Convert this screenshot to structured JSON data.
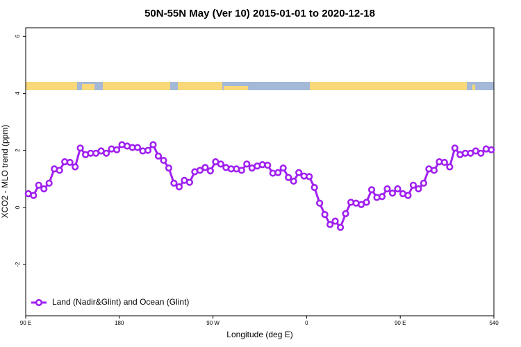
{
  "chart_data": {
    "type": "line",
    "title": "50N-55N May (Ver 10)   2015-01-01 to 2020-12-18",
    "xlabel": "Longitude (deg E)",
    "ylabel": "XCO2 - MLO trend (ppm)",
    "xlim": [
      90,
      540
    ],
    "ylim": [
      -3.8,
      6.3
    ],
    "xticks": [
      {
        "value": 90,
        "label": "90 E"
      },
      180,
      {
        "value": 270,
        "label": "90 W"
      },
      {
        "value": 360,
        "label": "0"
      },
      {
        "value": 450,
        "label": "90 E"
      },
      540
    ],
    "yticks": [
      -2,
      0,
      2,
      4,
      6
    ],
    "legend": "bottom-left",
    "x": [
      92.5,
      97.5,
      102.5,
      107.5,
      112.5,
      117.5,
      122.5,
      127.5,
      132.5,
      137.5,
      142.5,
      147.5,
      152.5,
      157.5,
      162.5,
      167.5,
      172.5,
      177.5,
      182.5,
      187.5,
      192.5,
      197.5,
      202.5,
      207.5,
      212.5,
      217.5,
      222.5,
      227.5,
      232.5,
      237.5,
      242.5,
      247.5,
      252.5,
      257.5,
      262.5,
      267.5,
      272.5,
      277.5,
      282.5,
      287.5,
      292.5,
      297.5,
      302.5,
      307.5,
      312.5,
      317.5,
      322.5,
      327.5,
      332.5,
      337.5,
      342.5,
      347.5,
      352.5,
      357.5,
      362.5,
      367.5,
      372.5,
      377.5,
      382.5,
      387.5,
      392.5,
      397.5,
      402.5,
      407.5,
      412.5,
      417.5,
      422.5,
      427.5,
      432.5,
      437.5,
      442.5,
      447.5,
      452.5,
      457.5,
      462.5,
      467.5,
      472.5,
      477.5,
      482.5,
      487.5,
      492.5,
      497.5,
      502.5,
      507.5,
      512.5,
      517.5,
      522.5,
      527.5,
      532.5,
      537.5
    ],
    "series": [
      {
        "name": "Land (Nadir&Glint) and Ocean (Glint)",
        "color": "#a020f0",
        "values": [
          0.48,
          0.42,
          0.78,
          0.65,
          0.85,
          1.35,
          1.3,
          1.6,
          1.58,
          1.42,
          2.08,
          1.85,
          1.9,
          1.9,
          1.98,
          1.9,
          2.05,
          2.02,
          2.2,
          2.15,
          2.1,
          2.1,
          1.98,
          2.0,
          2.2,
          1.8,
          1.65,
          1.38,
          0.85,
          0.72,
          0.95,
          0.88,
          1.25,
          1.3,
          1.4,
          1.28,
          1.6,
          1.52,
          1.4,
          1.35,
          1.35,
          1.3,
          1.52,
          1.38,
          1.45,
          1.5,
          1.48,
          1.2,
          1.22,
          1.38,
          1.05,
          0.92,
          1.22,
          1.1,
          1.08,
          0.7,
          0.15,
          -0.25,
          -0.6,
          -0.48,
          -0.7,
          -0.22,
          0.18,
          0.15,
          0.1,
          0.18,
          0.62,
          0.35,
          0.38,
          0.65,
          0.5,
          0.65,
          0.48,
          0.42,
          0.78,
          0.65,
          0.85,
          1.35,
          1.3,
          1.6,
          1.58,
          1.42,
          2.08,
          1.85,
          1.9,
          1.9,
          1.98,
          1.9,
          2.05,
          2.02
        ]
      }
    ]
  }
}
